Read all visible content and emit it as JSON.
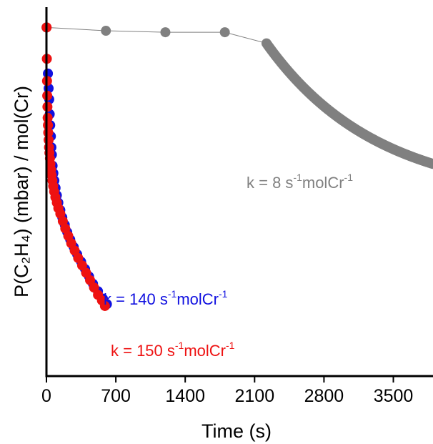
{
  "chart_data": {
    "type": "scatter",
    "xlabel": "Time (s)",
    "ylabel": "P(C₂H₄) (mbar) / mol(Cr)",
    "xlim": [
      0,
      3900
    ],
    "ylim": [
      0,
      100
    ],
    "xticks": [
      0,
      700,
      1400,
      2100,
      2800,
      3500
    ],
    "xtick_labels": [
      "0",
      "700",
      "1400",
      "2100",
      "2800",
      "3500"
    ],
    "y_tick_labels_shown": false,
    "grid": false,
    "colors": {
      "blue": "#1010e0",
      "red": "#ee1111",
      "gray": "#808080"
    },
    "series": [
      {
        "color": "#808080",
        "connected_line": true,
        "x": [
          0,
          600,
          1200,
          1800,
          2220
        ],
        "y": [
          94.5,
          93.6,
          93.2,
          93.2,
          90.2
        ],
        "decay": {
          "x_start": 2230,
          "x_end": 3900,
          "y_start": 89.8,
          "y_end": 57.5,
          "k_shape": 1.5,
          "point_count": 240
        }
      },
      {
        "color": "#1010e0",
        "x": [
          15,
          22,
          28,
          33,
          38,
          45,
          50,
          55,
          62,
          70,
          80,
          92,
          105,
          120,
          140,
          160,
          185,
          210,
          240,
          275,
          310,
          350,
          390,
          430,
          470,
          520,
          570,
          610
        ],
        "y": [
          82,
          78,
          75,
          71,
          68,
          65,
          62,
          60,
          57,
          55,
          53,
          51,
          49,
          47,
          45,
          43,
          41,
          39,
          37,
          35,
          33,
          31,
          29,
          27,
          25,
          23,
          21,
          19.5
        ]
      },
      {
        "color": "#ee1111",
        "x": [
          2,
          4,
          6,
          8,
          10,
          12,
          15,
          18,
          22,
          26,
          30,
          35,
          40,
          46,
          52,
          60,
          68,
          78,
          90,
          105,
          120,
          140,
          165,
          190,
          220,
          250,
          285,
          320,
          360,
          400,
          440,
          480,
          520,
          560,
          590
        ],
        "y": [
          94.5,
          86,
          80,
          76,
          73,
          70,
          68,
          66,
          64,
          62,
          60.5,
          59,
          57.5,
          56,
          54.5,
          53,
          51.5,
          50,
          48.5,
          47,
          45.5,
          44,
          42,
          40,
          38,
          36,
          34,
          32,
          30,
          28,
          26,
          24,
          22,
          20.5,
          19
        ]
      }
    ],
    "annotations": [
      {
        "base": "k = 8 s",
        "sup1": "-1",
        "mid": "molCr",
        "sup2": "-1",
        "color": "#808080"
      },
      {
        "base": "k = 140 s",
        "sup1": "-1",
        "mid": "molCr",
        "sup2": "-1",
        "color": "#1010e0"
      },
      {
        "base": "k = 150 s",
        "sup1": "-1",
        "mid": "molCr",
        "sup2": "-1",
        "color": "#ee1111"
      }
    ]
  }
}
